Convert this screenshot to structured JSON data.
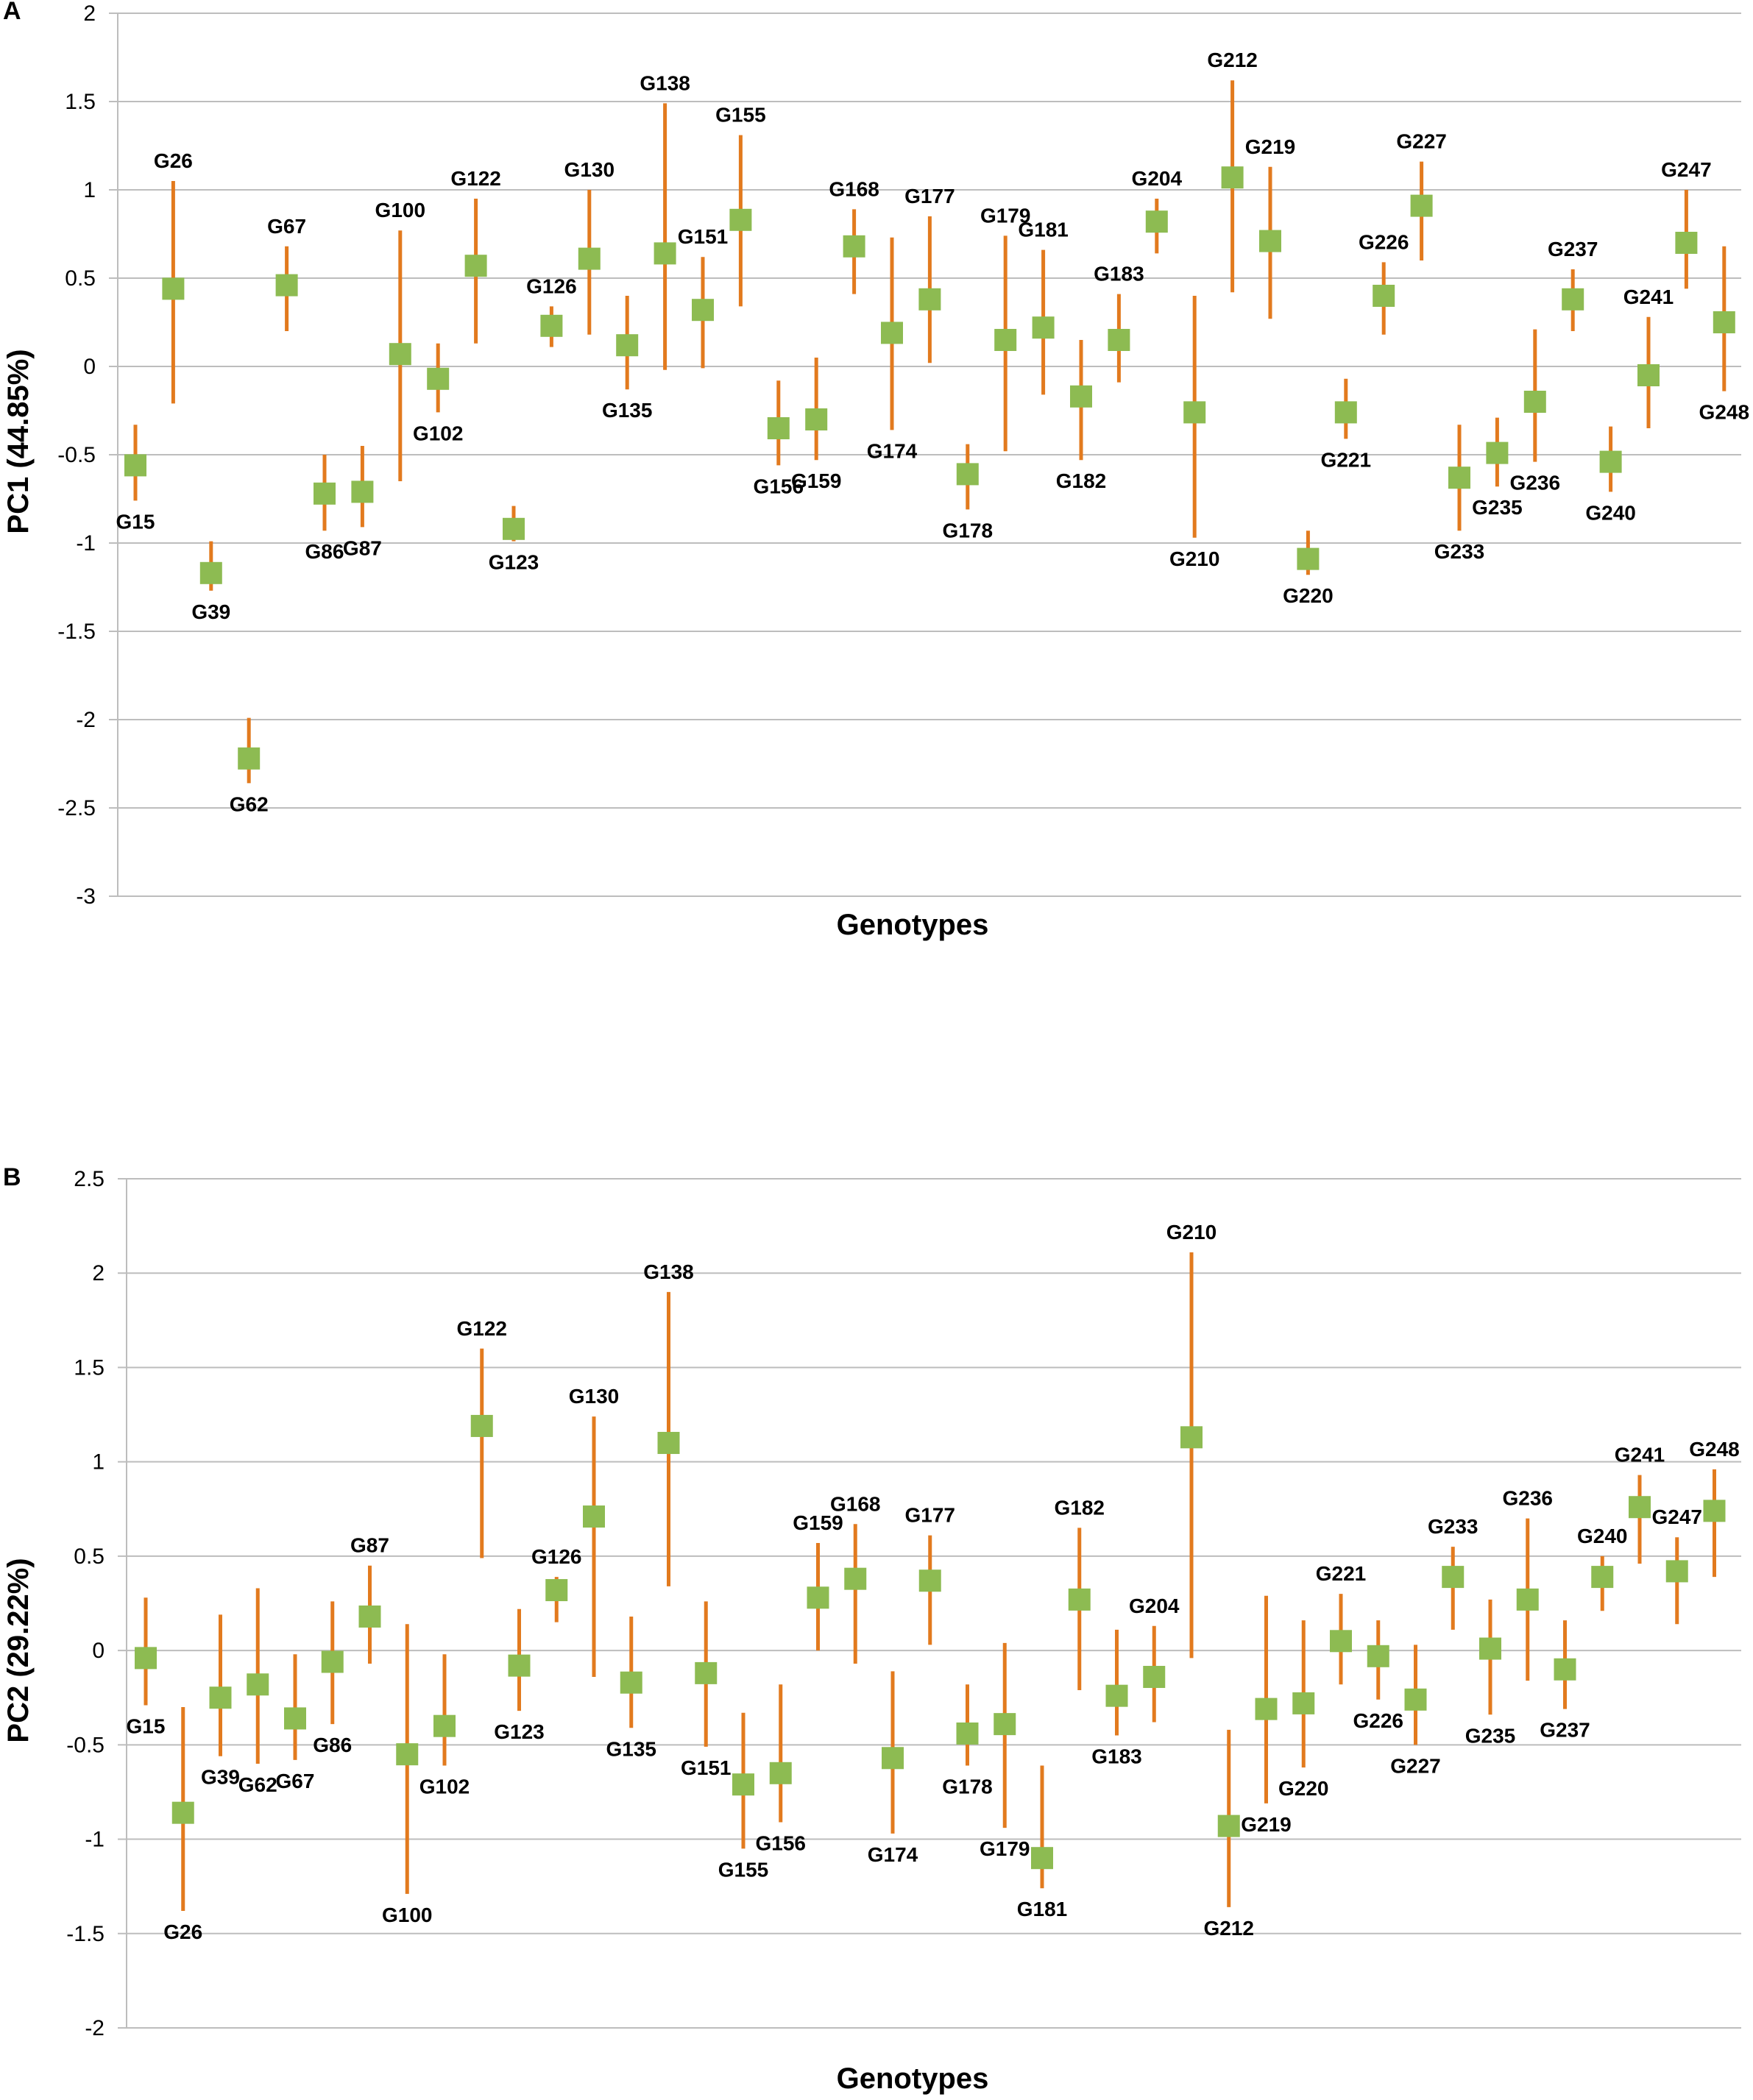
{
  "chart_data": [
    {
      "panel": "A",
      "type": "scatter",
      "title": "",
      "xlabel": "Genotypes",
      "ylabel": "PC1 (44.85%)",
      "ylim": [
        -3,
        2
      ],
      "yticks": [
        2,
        1.5,
        1,
        0.5,
        0,
        -0.5,
        -1,
        -1.5,
        -2,
        -2.5,
        -3
      ],
      "ytick_labels": [
        "2",
        "1.5",
        "1",
        "0.5",
        "0",
        "-0.5",
        "-1",
        "-1.5",
        "-2",
        "-2.5",
        "-3"
      ],
      "grid": true,
      "colors": {
        "marker": "#8dbb52",
        "error_bar": "#e27a1e"
      },
      "points": [
        {
          "label": "G15",
          "value": -0.56,
          "low": -0.76,
          "high": -0.33,
          "label_pos": "below"
        },
        {
          "label": "G26",
          "value": 0.44,
          "low": -0.21,
          "high": 1.05,
          "label_pos": "above"
        },
        {
          "label": "G39",
          "value": -1.17,
          "low": -1.27,
          "high": -0.99,
          "label_pos": "below"
        },
        {
          "label": "G62",
          "value": -2.22,
          "low": -2.36,
          "high": -1.99,
          "label_pos": "below"
        },
        {
          "label": "G67",
          "value": 0.46,
          "low": 0.2,
          "high": 0.68,
          "label_pos": "above"
        },
        {
          "label": "G86",
          "value": -0.72,
          "low": -0.93,
          "high": -0.5,
          "label_pos": "below"
        },
        {
          "label": "G87",
          "value": -0.71,
          "low": -0.91,
          "high": -0.45,
          "label_pos": "below"
        },
        {
          "label": "G100",
          "value": 0.07,
          "low": -0.65,
          "high": 0.77,
          "label_pos": "above"
        },
        {
          "label": "G102",
          "value": -0.07,
          "low": -0.26,
          "high": 0.13,
          "label_pos": "below"
        },
        {
          "label": "G122",
          "value": 0.57,
          "low": 0.13,
          "high": 0.95,
          "label_pos": "above"
        },
        {
          "label": "G123",
          "value": -0.92,
          "low": -0.99,
          "high": -0.79,
          "label_pos": "below"
        },
        {
          "label": "G126",
          "value": 0.23,
          "low": 0.11,
          "high": 0.34,
          "label_pos": "above"
        },
        {
          "label": "G130",
          "value": 0.61,
          "low": 0.18,
          "high": 1.0,
          "label_pos": "above"
        },
        {
          "label": "G135",
          "value": 0.12,
          "low": -0.13,
          "high": 0.4,
          "label_pos": "below"
        },
        {
          "label": "G138",
          "value": 0.64,
          "low": -0.02,
          "high": 1.49,
          "label_pos": "above"
        },
        {
          "label": "G151",
          "value": 0.32,
          "low": -0.01,
          "high": 0.62,
          "label_pos": "above"
        },
        {
          "label": "G155",
          "value": 0.83,
          "low": 0.34,
          "high": 1.31,
          "label_pos": "above"
        },
        {
          "label": "G156",
          "value": -0.35,
          "low": -0.56,
          "high": -0.08,
          "label_pos": "below"
        },
        {
          "label": "G159",
          "value": -0.3,
          "low": -0.53,
          "high": 0.05,
          "label_pos": "below"
        },
        {
          "label": "G168",
          "value": 0.68,
          "low": 0.41,
          "high": 0.89,
          "label_pos": "above"
        },
        {
          "label": "G174",
          "value": 0.19,
          "low": -0.36,
          "high": 0.73,
          "label_pos": "below"
        },
        {
          "label": "G177",
          "value": 0.38,
          "low": 0.02,
          "high": 0.85,
          "label_pos": "above"
        },
        {
          "label": "G178",
          "value": -0.61,
          "low": -0.81,
          "high": -0.44,
          "label_pos": "below"
        },
        {
          "label": "G179",
          "value": 0.15,
          "low": -0.48,
          "high": 0.74,
          "label_pos": "above"
        },
        {
          "label": "G181",
          "value": 0.22,
          "low": -0.16,
          "high": 0.66,
          "label_pos": "above"
        },
        {
          "label": "G182",
          "value": -0.17,
          "low": -0.53,
          "high": 0.15,
          "label_pos": "below"
        },
        {
          "label": "G183",
          "value": 0.15,
          "low": -0.09,
          "high": 0.41,
          "label_pos": "above"
        },
        {
          "label": "G204",
          "value": 0.82,
          "low": 0.64,
          "high": 0.95,
          "label_pos": "above"
        },
        {
          "label": "G210",
          "value": -0.26,
          "low": -0.97,
          "high": 0.4,
          "label_pos": "below"
        },
        {
          "label": "G212",
          "value": 1.07,
          "low": 0.42,
          "high": 1.62,
          "label_pos": "above"
        },
        {
          "label": "G219",
          "value": 0.71,
          "low": 0.27,
          "high": 1.13,
          "label_pos": "above"
        },
        {
          "label": "G220",
          "value": -1.09,
          "low": -1.18,
          "high": -0.93,
          "label_pos": "below"
        },
        {
          "label": "G221",
          "value": -0.26,
          "low": -0.41,
          "high": -0.07,
          "label_pos": "below"
        },
        {
          "label": "G226",
          "value": 0.4,
          "low": 0.18,
          "high": 0.59,
          "label_pos": "above"
        },
        {
          "label": "G227",
          "value": 0.91,
          "low": 0.6,
          "high": 1.16,
          "label_pos": "above"
        },
        {
          "label": "G233",
          "value": -0.63,
          "low": -0.93,
          "high": -0.33,
          "label_pos": "below"
        },
        {
          "label": "G235",
          "value": -0.49,
          "low": -0.68,
          "high": -0.29,
          "label_pos": "below"
        },
        {
          "label": "G236",
          "value": -0.2,
          "low": -0.54,
          "high": 0.21,
          "label_pos": "below"
        },
        {
          "label": "G237",
          "value": 0.38,
          "low": 0.2,
          "high": 0.55,
          "label_pos": "above"
        },
        {
          "label": "G240",
          "value": -0.54,
          "low": -0.71,
          "high": -0.34,
          "label_pos": "below"
        },
        {
          "label": "G241",
          "value": -0.05,
          "low": -0.35,
          "high": 0.28,
          "label_pos": "above"
        },
        {
          "label": "G247",
          "value": 0.7,
          "low": 0.44,
          "high": 1.0,
          "label_pos": "above"
        },
        {
          "label": "G248",
          "value": 0.25,
          "low": -0.14,
          "high": 0.68,
          "label_pos": "below"
        }
      ]
    },
    {
      "panel": "B",
      "type": "scatter",
      "title": "",
      "xlabel": "Genotypes",
      "ylabel": "PC2 (29.22%)",
      "ylim": [
        -2,
        2.5
      ],
      "yticks": [
        2.5,
        2,
        1.5,
        1,
        0.5,
        0,
        -0.5,
        -1,
        -1.5,
        -2
      ],
      "ytick_labels": [
        "2.5",
        "2",
        "1.5",
        "1",
        "0.5",
        "0",
        "-0.5",
        "-1",
        "-1.5",
        "-2"
      ],
      "grid": true,
      "colors": {
        "marker": "#8dbb52",
        "error_bar": "#e27a1e"
      },
      "points": [
        {
          "label": "G15",
          "value": -0.04,
          "low": -0.29,
          "high": 0.28,
          "label_pos": "below"
        },
        {
          "label": "G26",
          "value": -0.86,
          "low": -1.38,
          "high": -0.3,
          "label_pos": "below"
        },
        {
          "label": "G39",
          "value": -0.25,
          "low": -0.56,
          "high": 0.19,
          "label_pos": "below"
        },
        {
          "label": "G62",
          "value": -0.18,
          "low": -0.6,
          "high": 0.33,
          "label_pos": "below"
        },
        {
          "label": "G67",
          "value": -0.36,
          "low": -0.58,
          "high": -0.02,
          "label_pos": "below"
        },
        {
          "label": "G86",
          "value": -0.06,
          "low": -0.39,
          "high": 0.26,
          "label_pos": "below"
        },
        {
          "label": "G87",
          "value": 0.18,
          "low": -0.07,
          "high": 0.45,
          "label_pos": "above"
        },
        {
          "label": "G100",
          "value": -0.55,
          "low": -1.29,
          "high": 0.14,
          "label_pos": "below"
        },
        {
          "label": "G102",
          "value": -0.4,
          "low": -0.61,
          "high": -0.02,
          "label_pos": "below"
        },
        {
          "label": "G122",
          "value": 1.19,
          "low": 0.49,
          "high": 1.6,
          "label_pos": "above"
        },
        {
          "label": "G123",
          "value": -0.08,
          "low": -0.32,
          "high": 0.22,
          "label_pos": "below"
        },
        {
          "label": "G126",
          "value": 0.32,
          "low": 0.15,
          "high": 0.39,
          "label_pos": "above"
        },
        {
          "label": "G130",
          "value": 0.71,
          "low": -0.14,
          "high": 1.24,
          "label_pos": "above"
        },
        {
          "label": "G135",
          "value": -0.17,
          "low": -0.41,
          "high": 0.18,
          "label_pos": "below"
        },
        {
          "label": "G138",
          "value": 1.1,
          "low": 0.34,
          "high": 1.9,
          "label_pos": "above"
        },
        {
          "label": "G151",
          "value": -0.12,
          "low": -0.51,
          "high": 0.26,
          "label_pos": "below"
        },
        {
          "label": "G155",
          "value": -0.71,
          "low": -1.05,
          "high": -0.33,
          "label_pos": "below"
        },
        {
          "label": "G156",
          "value": -0.65,
          "low": -0.91,
          "high": -0.18,
          "label_pos": "below"
        },
        {
          "label": "G159",
          "value": 0.28,
          "low": 0.0,
          "high": 0.57,
          "label_pos": "above"
        },
        {
          "label": "G168",
          "value": 0.38,
          "low": -0.07,
          "high": 0.67,
          "label_pos": "above"
        },
        {
          "label": "G174",
          "value": -0.57,
          "low": -0.97,
          "high": -0.11,
          "label_pos": "below"
        },
        {
          "label": "G177",
          "value": 0.37,
          "low": 0.03,
          "high": 0.61,
          "label_pos": "above"
        },
        {
          "label": "G178",
          "value": -0.44,
          "low": -0.61,
          "high": -0.18,
          "label_pos": "below"
        },
        {
          "label": "G179",
          "value": -0.39,
          "low": -0.94,
          "high": 0.04,
          "label_pos": "below"
        },
        {
          "label": "G181",
          "value": -1.1,
          "low": -1.26,
          "high": -0.61,
          "label_pos": "below"
        },
        {
          "label": "G182",
          "value": 0.27,
          "low": -0.21,
          "high": 0.65,
          "label_pos": "above"
        },
        {
          "label": "G183",
          "value": -0.24,
          "low": -0.45,
          "high": 0.11,
          "label_pos": "below"
        },
        {
          "label": "G204",
          "value": -0.14,
          "low": -0.38,
          "high": 0.13,
          "label_pos": "above"
        },
        {
          "label": "G210",
          "value": 1.13,
          "low": -0.04,
          "high": 2.11,
          "label_pos": "above"
        },
        {
          "label": "G212",
          "value": -0.93,
          "low": -1.36,
          "high": -0.42,
          "label_pos": "below"
        },
        {
          "label": "G219",
          "value": -0.31,
          "low": -0.81,
          "high": 0.29,
          "label_pos": "below"
        },
        {
          "label": "G220",
          "value": -0.28,
          "low": -0.62,
          "high": 0.16,
          "label_pos": "below"
        },
        {
          "label": "G221",
          "value": 0.05,
          "low": -0.18,
          "high": 0.3,
          "label_pos": "above"
        },
        {
          "label": "G226",
          "value": -0.03,
          "low": -0.26,
          "high": 0.16,
          "label_pos": "below"
        },
        {
          "label": "G227",
          "value": -0.26,
          "low": -0.5,
          "high": 0.03,
          "label_pos": "below"
        },
        {
          "label": "G233",
          "value": 0.39,
          "low": 0.11,
          "high": 0.55,
          "label_pos": "above"
        },
        {
          "label": "G235",
          "value": 0.01,
          "low": -0.34,
          "high": 0.27,
          "label_pos": "below"
        },
        {
          "label": "G236",
          "value": 0.27,
          "low": -0.16,
          "high": 0.7,
          "label_pos": "above"
        },
        {
          "label": "G237",
          "value": -0.1,
          "low": -0.31,
          "high": 0.16,
          "label_pos": "below"
        },
        {
          "label": "G240",
          "value": 0.39,
          "low": 0.21,
          "high": 0.5,
          "label_pos": "above"
        },
        {
          "label": "G241",
          "value": 0.76,
          "low": 0.46,
          "high": 0.93,
          "label_pos": "above"
        },
        {
          "label": "G247",
          "value": 0.42,
          "low": 0.14,
          "high": 0.6,
          "label_pos": "above"
        },
        {
          "label": "G248",
          "value": 0.74,
          "low": 0.39,
          "high": 0.96,
          "label_pos": "above"
        }
      ]
    }
  ]
}
